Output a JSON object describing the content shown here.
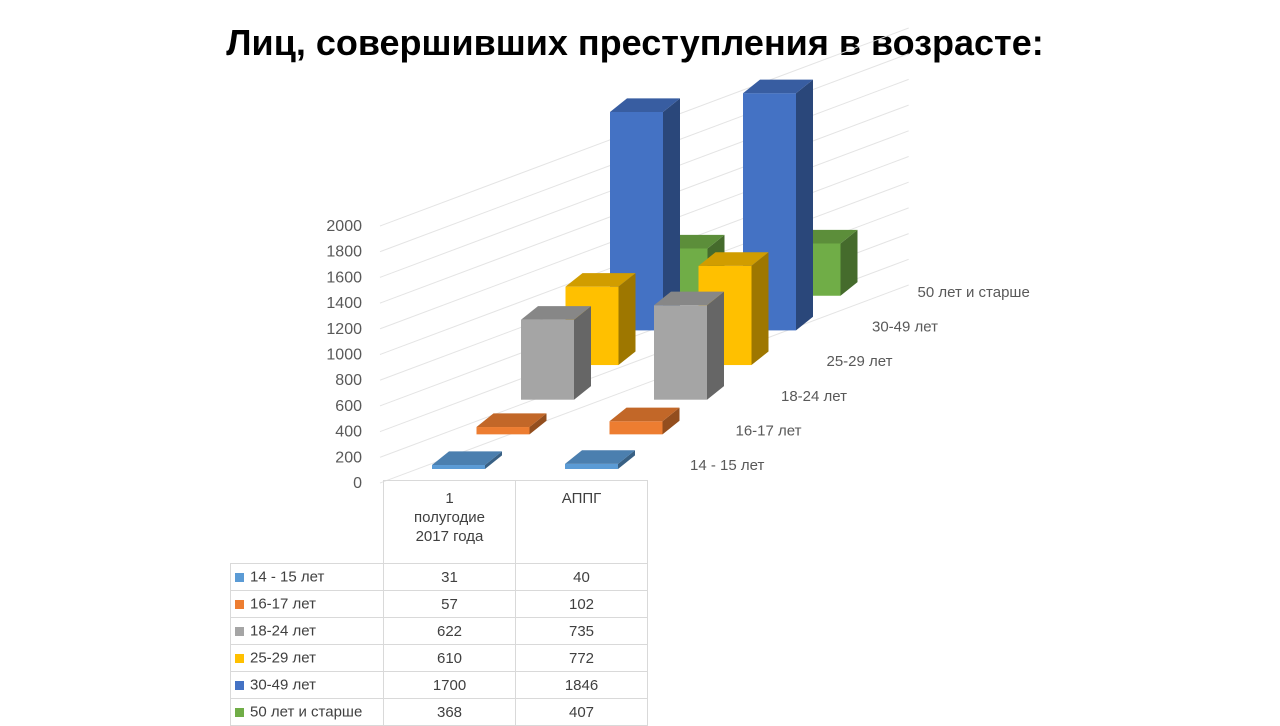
{
  "title": "Лиц, совершивших преступления в возрасте:",
  "chart_data": {
    "type": "bar",
    "subtype": "3d-column",
    "categories": [
      "1 полугодие 2017 года",
      "АППГ"
    ],
    "series": [
      {
        "name": "14 - 15 лет",
        "values": [
          31,
          40
        ],
        "color": "#5B9BD5"
      },
      {
        "name": "16-17 лет",
        "values": [
          57,
          102
        ],
        "color": "#ED7D31"
      },
      {
        "name": "18-24 лет",
        "values": [
          622,
          735
        ],
        "color": "#A5A5A5"
      },
      {
        "name": "25-29 лет",
        "values": [
          610,
          772
        ],
        "color": "#FFC000"
      },
      {
        "name": "30-49 лет",
        "values": [
          1700,
          1846
        ],
        "color": "#4472C4"
      },
      {
        "name": "50 лет и старше",
        "values": [
          368,
          407
        ],
        "color": "#70AD47"
      }
    ],
    "yticks": [
      0,
      200,
      400,
      600,
      800,
      1000,
      1200,
      1400,
      1600,
      1800,
      2000
    ],
    "ylim": [
      0,
      2000
    ],
    "grid": true,
    "legend": "data-table"
  },
  "table": {
    "header": [
      "1\nполугодие\n2017 года",
      "АППГ"
    ]
  }
}
